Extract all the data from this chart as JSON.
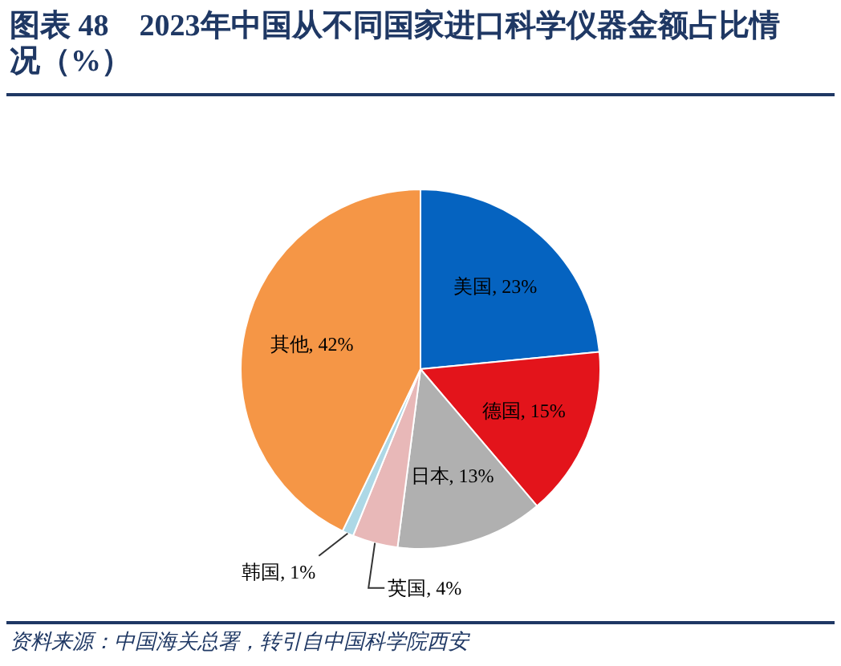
{
  "chart_data": {
    "type": "pie",
    "title": "图表 48　2023年中国从不同国家进口科学仪器金额占比情况（%）",
    "categories": [
      "美国",
      "德国",
      "日本",
      "英国",
      "韩国",
      "其他"
    ],
    "values": [
      23,
      15,
      13,
      4,
      1,
      42
    ],
    "value_labels": [
      "23%",
      "15%",
      "13%",
      "4%",
      "1%",
      "42%"
    ],
    "colors": [
      "#0563c0",
      "#e3141b",
      "#b0b0b0",
      "#e8b8b8",
      "#add8e6",
      "#f59646"
    ],
    "annotations": [
      "资料来源：中国海关总署，转引自中国科学院西安"
    ]
  }
}
